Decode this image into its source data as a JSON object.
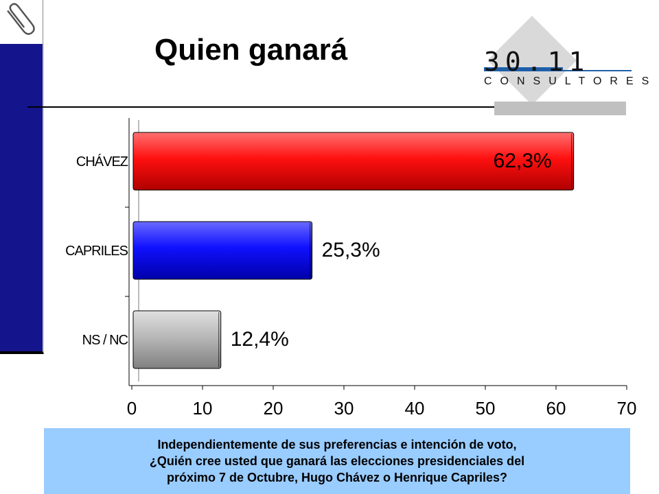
{
  "slide": {
    "title": "Quien ganará",
    "question_lines": [
      "Independientemente de sus preferencias e intención de voto,",
      "¿Quién cree usted que ganará las elecciones  presidenciales del",
      "próximo  7  de Octubre,  Hugo Chávez  o  Henrique Capriles?"
    ]
  },
  "logo": {
    "number": "30.11",
    "subtitle": "CONSULTORES",
    "colors": {
      "accent": "#1f5fa8",
      "diamond": "#d9d9d9",
      "bar": "#c0c0c0"
    }
  },
  "icons": {
    "clip": "paperclip-icon"
  },
  "chart_data": {
    "type": "bar",
    "orientation": "horizontal",
    "categories": [
      "CHÁVEZ",
      "CAPRILES",
      "NS / NC"
    ],
    "values": [
      62.3,
      25.3,
      12.4
    ],
    "data_labels": [
      "62,3%",
      "25,3%",
      "12,4%"
    ],
    "colors": [
      "#e00000",
      "#0000e0",
      "#a8a8a8"
    ],
    "xlim": [
      0,
      70
    ],
    "xticks": [
      0,
      10,
      20,
      30,
      40,
      50,
      60,
      70
    ],
    "grid": false
  }
}
